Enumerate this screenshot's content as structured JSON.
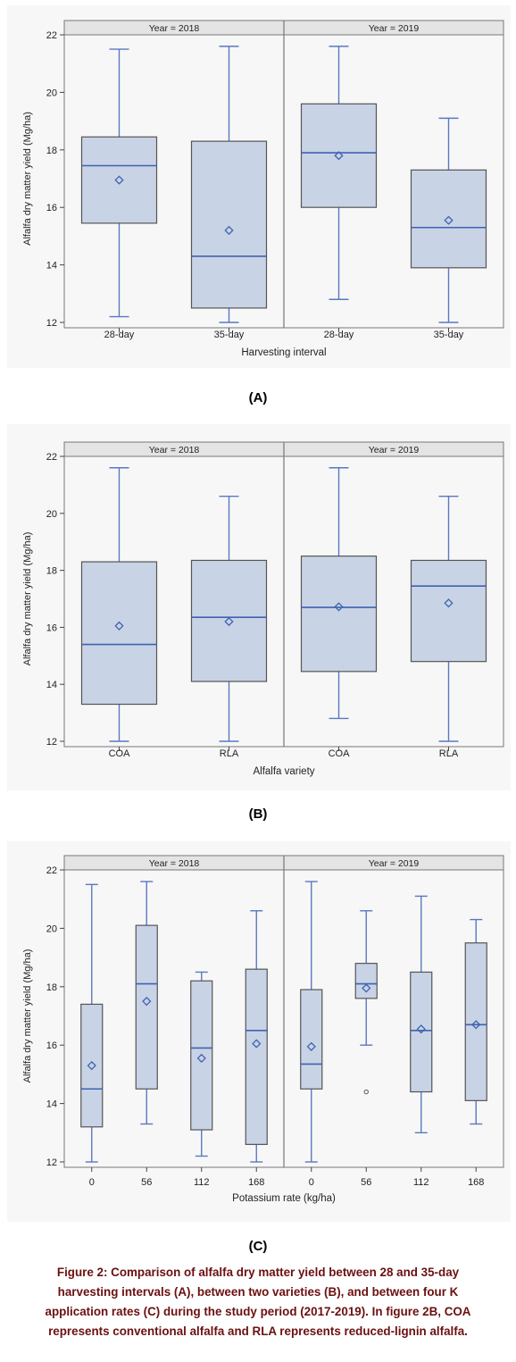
{
  "colors": {
    "box_fill": "#c8d3e6",
    "box_stroke": "#555555",
    "median": "#3f62b0",
    "whisker": "#5a78c0",
    "mean_marker": "#3f62b0",
    "header_bg": "#e4e4e4",
    "caption": "#6b1010"
  },
  "panels": [
    {
      "tag": "(A)",
      "chart_data": {
        "type": "box",
        "facets": [
          "Year = 2018",
          "Year = 2019"
        ],
        "categories": [
          "28-day",
          "35-day"
        ],
        "xlabel": "Harvesting interval",
        "ylabel": "Alfalfa dry matter yield (Mg/ha)",
        "ylim": [
          12,
          22
        ],
        "yticks": [
          12,
          14,
          16,
          18,
          20,
          22
        ],
        "boxes": [
          [
            {
              "min": 12.2,
              "q1": 15.45,
              "median": 17.45,
              "q3": 18.45,
              "max": 21.5,
              "mean": 16.95
            },
            {
              "min": 12.0,
              "q1": 12.5,
              "median": 14.3,
              "q3": 18.3,
              "max": 21.6,
              "mean": 15.2
            }
          ],
          [
            {
              "min": 12.8,
              "q1": 16.0,
              "median": 17.9,
              "q3": 19.6,
              "max": 21.6,
              "mean": 17.8
            },
            {
              "min": 12.0,
              "q1": 13.9,
              "median": 15.3,
              "q3": 17.3,
              "max": 19.1,
              "mean": 15.55
            }
          ]
        ]
      }
    },
    {
      "tag": "(B)",
      "chart_data": {
        "type": "box",
        "facets": [
          "Year = 2018",
          "Year = 2019"
        ],
        "categories": [
          "COA",
          "RLA"
        ],
        "xlabel": "Alfalfa variety",
        "ylabel": "Alfalfa dry matter yield (Mg/ha)",
        "ylim": [
          12,
          22
        ],
        "yticks": [
          12,
          14,
          16,
          18,
          20,
          22
        ],
        "boxes": [
          [
            {
              "min": 12.0,
              "q1": 13.3,
              "median": 15.4,
              "q3": 18.3,
              "max": 21.6,
              "mean": 16.05
            },
            {
              "min": 12.0,
              "q1": 14.1,
              "median": 16.35,
              "q3": 18.35,
              "max": 20.6,
              "mean": 16.2
            }
          ],
          [
            {
              "min": 12.8,
              "q1": 14.45,
              "median": 16.7,
              "q3": 18.5,
              "max": 21.6,
              "mean": 16.72
            },
            {
              "min": 12.0,
              "q1": 14.8,
              "median": 17.45,
              "q3": 18.35,
              "max": 20.6,
              "mean": 16.85
            }
          ]
        ]
      }
    },
    {
      "tag": "(C)",
      "chart_data": {
        "type": "box",
        "facets": [
          "Year = 2018",
          "Year = 2019"
        ],
        "categories": [
          "0",
          "56",
          "112",
          "168"
        ],
        "xlabel": "Potassium rate (kg/ha)",
        "ylabel": "Alfalfa dry matter yield (Mg/ha)",
        "ylim": [
          12,
          22
        ],
        "yticks": [
          12,
          14,
          16,
          18,
          20,
          22
        ],
        "boxes": [
          [
            {
              "min": 12.0,
              "q1": 13.2,
              "median": 14.5,
              "q3": 17.4,
              "max": 21.5,
              "mean": 15.3
            },
            {
              "min": 13.3,
              "q1": 14.5,
              "median": 18.1,
              "q3": 20.1,
              "max": 21.6,
              "mean": 17.5
            },
            {
              "min": 12.2,
              "q1": 13.1,
              "median": 15.9,
              "q3": 18.2,
              "max": 18.5,
              "mean": 15.55
            },
            {
              "min": 12.0,
              "q1": 12.6,
              "median": 16.5,
              "q3": 18.6,
              "max": 20.6,
              "mean": 16.05
            }
          ],
          [
            {
              "min": 12.0,
              "q1": 14.5,
              "median": 15.35,
              "q3": 17.9,
              "max": 21.6,
              "mean": 15.95
            },
            {
              "min": 16.0,
              "q1": 17.6,
              "median": 18.1,
              "q3": 18.8,
              "max": 20.6,
              "mean": 17.95,
              "outliers": [
                14.4
              ]
            },
            {
              "min": 13.0,
              "q1": 14.4,
              "median": 16.5,
              "q3": 18.5,
              "max": 21.1,
              "mean": 16.55
            },
            {
              "min": 13.3,
              "q1": 14.1,
              "median": 16.7,
              "q3": 19.5,
              "max": 20.3,
              "mean": 16.7
            }
          ]
        ]
      }
    }
  ],
  "caption_lines": [
    "Figure 2: Comparison of alfalfa dry matter yield between 28 and 35-day",
    "harvesting intervals (A), between two varieties (B), and between four K",
    "application rates (C) during the study period (2017-2019). In figure 2B, COA",
    "represents conventional alfalfa and RLA represents reduced-lignin alfalfa."
  ]
}
